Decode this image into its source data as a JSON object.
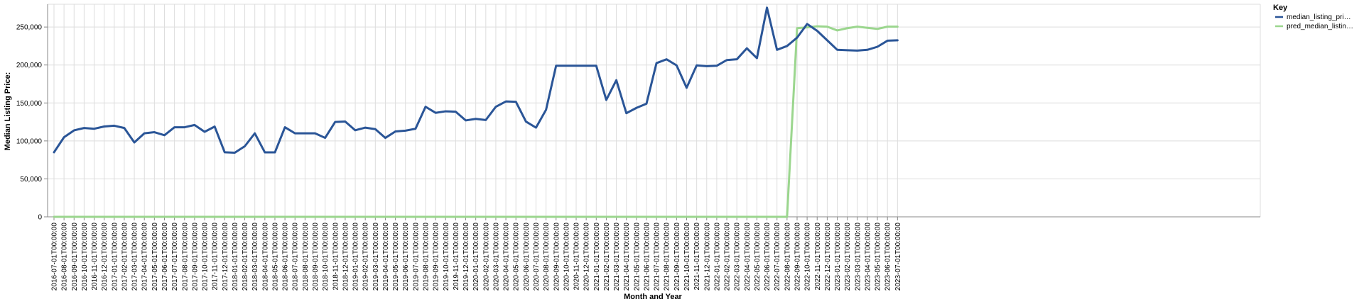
{
  "chart_data": {
    "type": "line",
    "xlabel": "Month and Year",
    "ylabel": "Median Listing Price:",
    "ylim": [
      0,
      280000
    ],
    "yticks": [
      0,
      50000,
      100000,
      150000,
      200000,
      250000
    ],
    "ytick_labels": [
      "0",
      "50,000",
      "100,000",
      "150,000",
      "200,000",
      "250,000"
    ],
    "grid": true,
    "legend": {
      "title": "Key",
      "position": "right"
    },
    "colors": {
      "actual": "#2a5597",
      "predicted": "#9bd68e"
    },
    "x": [
      "2016-07-01T00:00:00",
      "2016-08-01T00:00:00",
      "2016-09-01T00:00:00",
      "2016-10-01T00:00:00",
      "2016-11-01T00:00:00",
      "2016-12-01T00:00:00",
      "2017-01-01T00:00:00",
      "2017-02-01T00:00:00",
      "2017-03-01T00:00:00",
      "2017-04-01T00:00:00",
      "2017-05-01T00:00:00",
      "2017-06-01T00:00:00",
      "2017-07-01T00:00:00",
      "2017-08-01T00:00:00",
      "2017-09-01T00:00:00",
      "2017-10-01T00:00:00",
      "2017-11-01T00:00:00",
      "2017-12-01T00:00:00",
      "2018-01-01T00:00:00",
      "2018-02-01T00:00:00",
      "2018-03-01T00:00:00",
      "2018-04-01T00:00:00",
      "2018-05-01T00:00:00",
      "2018-06-01T00:00:00",
      "2018-07-01T00:00:00",
      "2018-08-01T00:00:00",
      "2018-09-01T00:00:00",
      "2018-10-01T00:00:00",
      "2018-11-01T00:00:00",
      "2018-12-01T00:00:00",
      "2019-01-01T00:00:00",
      "2019-02-01T00:00:00",
      "2019-03-01T00:00:00",
      "2019-04-01T00:00:00",
      "2019-05-01T00:00:00",
      "2019-06-01T00:00:00",
      "2019-07-01T00:00:00",
      "2019-08-01T00:00:00",
      "2019-09-01T00:00:00",
      "2019-10-01T00:00:00",
      "2019-11-01T00:00:00",
      "2019-12-01T00:00:00",
      "2020-01-01T00:00:00",
      "2020-02-01T00:00:00",
      "2020-03-01T00:00:00",
      "2020-04-01T00:00:00",
      "2020-05-01T00:00:00",
      "2020-06-01T00:00:00",
      "2020-07-01T00:00:00",
      "2020-08-01T00:00:00",
      "2020-09-01T00:00:00",
      "2020-10-01T00:00:00",
      "2020-11-01T00:00:00",
      "2020-12-01T00:00:00",
      "2021-01-01T00:00:00",
      "2021-02-01T00:00:00",
      "2021-03-01T00:00:00",
      "2021-04-01T00:00:00",
      "2021-05-01T00:00:00",
      "2021-06-01T00:00:00",
      "2021-07-01T00:00:00",
      "2021-08-01T00:00:00",
      "2021-09-01T00:00:00",
      "2021-10-01T00:00:00",
      "2021-11-01T00:00:00",
      "2021-12-01T00:00:00",
      "2022-01-01T00:00:00",
      "2022-02-01T00:00:00",
      "2022-03-01T00:00:00",
      "2022-04-01T00:00:00",
      "2022-05-01T00:00:00",
      "2022-06-01T00:00:00",
      "2022-07-01T00:00:00",
      "2022-08-01T00:00:00",
      "2022-09-01T00:00:00",
      "2022-10-01T00:00:00",
      "2022-11-01T00:00:00",
      "2022-12-01T00:00:00",
      "2023-01-01T00:00:00",
      "2023-02-01T00:00:00",
      "2023-03-01T00:00:00",
      "2023-04-01T00:00:00",
      "2023-05-01T00:00:00",
      "2023-06-01T00:00:00",
      "2023-07-01T00:00:00"
    ],
    "series": [
      {
        "name": "median_listing_pri…",
        "values": [
          85000,
          104900,
          113900,
          117000,
          116000,
          119000,
          120000,
          117000,
          98000,
          110000,
          111500,
          107500,
          118000,
          118000,
          121000,
          112000,
          118900,
          85000,
          84500,
          93000,
          110000,
          84900,
          84900,
          118000,
          110000,
          110000,
          110000,
          104000,
          125000,
          125500,
          114000,
          117500,
          115500,
          104000,
          112500,
          113500,
          116000,
          145000,
          137000,
          139000,
          138500,
          127000,
          129000,
          127500,
          145000,
          152000,
          151500,
          125500,
          117500,
          141000,
          199000,
          199000,
          199000,
          199000,
          199000,
          154000,
          180000,
          136500,
          143500,
          149000,
          202500,
          207500,
          199500,
          170000,
          199500,
          198500,
          199000,
          206500,
          207500,
          222000,
          209000,
          275500,
          220000,
          225000,
          236000,
          254000,
          245000,
          232500,
          220000,
          219500,
          219000,
          220000,
          224000,
          232000,
          232500
        ]
      },
      {
        "name": "pred_median_listin…",
        "values": [
          0,
          0,
          0,
          0,
          0,
          0,
          0,
          0,
          0,
          0,
          0,
          0,
          0,
          0,
          0,
          0,
          0,
          0,
          0,
          0,
          0,
          0,
          0,
          0,
          0,
          0,
          0,
          0,
          0,
          0,
          0,
          0,
          0,
          0,
          0,
          0,
          0,
          0,
          0,
          0,
          0,
          0,
          0,
          0,
          0,
          0,
          0,
          0,
          0,
          0,
          0,
          0,
          0,
          0,
          0,
          0,
          0,
          0,
          0,
          0,
          0,
          0,
          0,
          0,
          0,
          0,
          0,
          0,
          0,
          0,
          0,
          0,
          0,
          0,
          248500,
          249500,
          251000,
          250500,
          245500,
          248500,
          250500,
          249000,
          247500,
          250500,
          250500
        ]
      }
    ]
  }
}
